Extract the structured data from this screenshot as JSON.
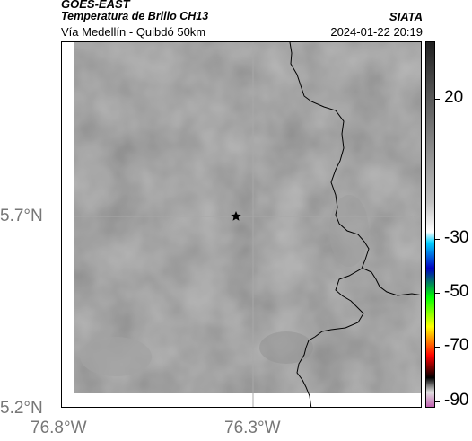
{
  "header": {
    "satellite": "GOES-EAST",
    "product": "Temperatura de Brillo CH13",
    "route": "Vía Medellín - Quibdó 50km",
    "agency": "SIATA",
    "datetime": "2024-01-22 20:19"
  },
  "axes": {
    "lat_ticks": [
      "5.7°N",
      "5.2°N"
    ],
    "lon_ticks": [
      "76.8°W",
      "76.3°W"
    ]
  },
  "colorbar": {
    "tick_labels": [
      "20",
      "-30",
      "-50",
      "-70",
      "-90"
    ],
    "range": [
      -95,
      40
    ],
    "colors": [
      "#c060b0",
      "#e0e0e0",
      "#000000",
      "#ff0000",
      "#ffff00",
      "#00ff00",
      "#0000c0",
      "#00d0ff",
      "#ffffff",
      "#c0c0c0",
      "#202020"
    ]
  },
  "marker": {
    "icon": "star-icon"
  },
  "colors": {
    "background_gray": "#858585",
    "coast": "#000000",
    "grid": "#a8a8a8"
  }
}
